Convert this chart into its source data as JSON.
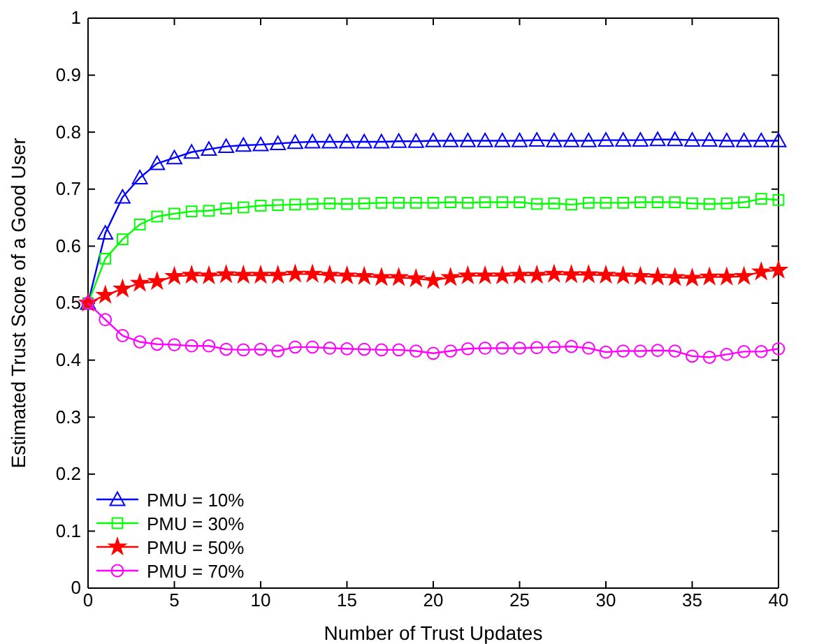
{
  "chart_data": {
    "type": "line",
    "xlabel": "Number of Trust Updates",
    "ylabel": "Estimated Trust Score of a Good User",
    "x": [
      0,
      1,
      2,
      3,
      4,
      5,
      6,
      7,
      8,
      9,
      10,
      11,
      12,
      13,
      14,
      15,
      16,
      17,
      18,
      19,
      20,
      21,
      22,
      23,
      24,
      25,
      26,
      27,
      28,
      29,
      30,
      31,
      32,
      33,
      34,
      35,
      36,
      37,
      38,
      39,
      40
    ],
    "xlim": [
      0,
      40
    ],
    "xticks": [
      0,
      5,
      10,
      15,
      20,
      25,
      30,
      35,
      40
    ],
    "ylim": [
      0,
      1
    ],
    "yticks": [
      0,
      0.1,
      0.2,
      0.3,
      0.4,
      0.5,
      0.6,
      0.7,
      0.8,
      0.9,
      1
    ],
    "legend": "bottom left",
    "grid": false,
    "line_style": "solid",
    "series": [
      {
        "name": "PMU = 10%",
        "color": "#0000ff",
        "marker": "triangle",
        "values": [
          0.5,
          0.623,
          0.686,
          0.72,
          0.745,
          0.755,
          0.765,
          0.77,
          0.775,
          0.777,
          0.778,
          0.78,
          0.782,
          0.783,
          0.783,
          0.783,
          0.783,
          0.783,
          0.784,
          0.784,
          0.785,
          0.785,
          0.785,
          0.785,
          0.785,
          0.785,
          0.786,
          0.785,
          0.785,
          0.785,
          0.786,
          0.786,
          0.786,
          0.787,
          0.787,
          0.786,
          0.786,
          0.785,
          0.785,
          0.785,
          0.785
        ]
      },
      {
        "name": "PMU = 30%",
        "color": "#00ff00",
        "marker": "square",
        "values": [
          0.5,
          0.578,
          0.612,
          0.638,
          0.652,
          0.657,
          0.661,
          0.662,
          0.666,
          0.668,
          0.671,
          0.672,
          0.673,
          0.674,
          0.675,
          0.674,
          0.675,
          0.676,
          0.676,
          0.676,
          0.676,
          0.677,
          0.676,
          0.677,
          0.677,
          0.677,
          0.674,
          0.675,
          0.673,
          0.676,
          0.676,
          0.676,
          0.677,
          0.677,
          0.677,
          0.675,
          0.674,
          0.675,
          0.677,
          0.683,
          0.681
        ]
      },
      {
        "name": "PMU = 50%",
        "color": "#ff0000",
        "marker": "star",
        "values": [
          0.5,
          0.514,
          0.525,
          0.535,
          0.538,
          0.547,
          0.549,
          0.548,
          0.55,
          0.549,
          0.549,
          0.549,
          0.551,
          0.551,
          0.549,
          0.548,
          0.547,
          0.545,
          0.545,
          0.543,
          0.54,
          0.545,
          0.548,
          0.548,
          0.548,
          0.549,
          0.549,
          0.551,
          0.55,
          0.55,
          0.549,
          0.548,
          0.547,
          0.546,
          0.545,
          0.544,
          0.546,
          0.546,
          0.547,
          0.555,
          0.558
        ]
      },
      {
        "name": "PMU = 70%",
        "color": "#ff00ff",
        "marker": "circle",
        "values": [
          0.5,
          0.471,
          0.443,
          0.432,
          0.428,
          0.427,
          0.425,
          0.425,
          0.419,
          0.418,
          0.419,
          0.416,
          0.423,
          0.423,
          0.421,
          0.42,
          0.419,
          0.418,
          0.418,
          0.416,
          0.412,
          0.416,
          0.42,
          0.421,
          0.421,
          0.421,
          0.422,
          0.423,
          0.424,
          0.421,
          0.414,
          0.416,
          0.416,
          0.417,
          0.416,
          0.407,
          0.405,
          0.41,
          0.415,
          0.415,
          0.42
        ]
      }
    ]
  }
}
